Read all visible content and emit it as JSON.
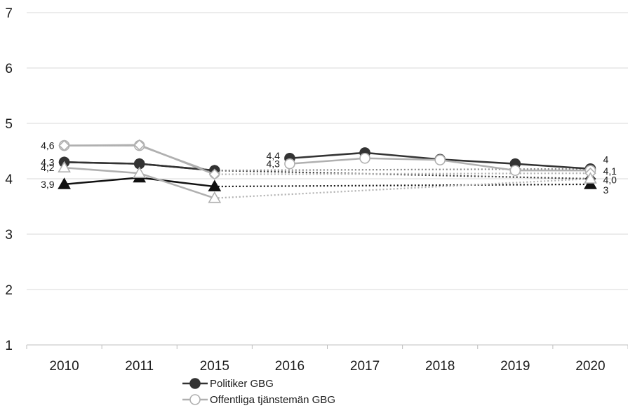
{
  "chart_data": {
    "type": "line",
    "categories": [
      "2010",
      "2011",
      "2015",
      "2016",
      "2017",
      "2018",
      "2019",
      "2020"
    ],
    "ylim": [
      1,
      7
    ],
    "yticks": [
      1,
      2,
      3,
      4,
      5,
      6,
      7
    ],
    "grid": true,
    "legend_position": "bottom",
    "series": [
      {
        "name": "Politiker GBG",
        "color": "#333333",
        "marker": "circle",
        "dash": false,
        "segments": [
          [
            0,
            2
          ],
          [
            3,
            7
          ]
        ],
        "values": [
          4.3,
          4.27,
          4.15,
          4.37,
          4.47,
          4.35,
          4.27,
          4.18
        ]
      },
      {
        "name": "Offentliga tjänstemän GBG",
        "color": "#b0b0b0",
        "marker": "circle-open",
        "dash": false,
        "segments": [
          [
            0,
            2
          ],
          [
            3,
            7
          ]
        ],
        "values": [
          4.6,
          4.6,
          4.1,
          4.27,
          4.37,
          4.34,
          4.15,
          4.15
        ]
      },
      {
        "color": "#333333",
        "marker": "diamond",
        "dash": false,
        "segments": [
          [
            0,
            2
          ]
        ],
        "values": [
          4.3,
          4.27,
          4.15,
          null,
          null,
          null,
          null,
          4.0
        ]
      },
      {
        "color": "#b0b0b0",
        "marker": "diamond-open",
        "dash": false,
        "segments": [
          [
            0,
            2
          ]
        ],
        "values": [
          4.6,
          4.61,
          4.08,
          null,
          null,
          null,
          null,
          4.1
        ]
      },
      {
        "color": "#111111",
        "marker": "triangle",
        "dash": false,
        "segments": [
          [
            0,
            2
          ]
        ],
        "values": [
          3.9,
          4.02,
          3.86,
          null,
          null,
          null,
          null,
          3.9
        ]
      },
      {
        "color": "#b0b0b0",
        "marker": "triangle-open",
        "dash": false,
        "segments": [
          [
            0,
            2
          ]
        ],
        "values": [
          4.2,
          4.1,
          3.65,
          null,
          null,
          null,
          null,
          4.0
        ]
      }
    ],
    "trendlines": [
      {
        "from": [
          2,
          4.15
        ],
        "to": [
          7,
          4.0
        ],
        "color": "#333333"
      },
      {
        "from": [
          2,
          4.08
        ],
        "to": [
          7,
          4.1
        ],
        "color": "#b0b0b0"
      },
      {
        "from": [
          2,
          3.86
        ],
        "to": [
          7,
          3.9
        ],
        "color": "#111111"
      },
      {
        "from": [
          2,
          3.65
        ],
        "to": [
          7,
          4.0
        ],
        "color": "#b0b0b0"
      },
      {
        "from": [
          2,
          4.15
        ],
        "to": [
          7,
          4.18
        ],
        "color": "#888888"
      }
    ],
    "data_labels": [
      {
        "text": "4,6",
        "category": 0,
        "value": 4.6,
        "side": "left"
      },
      {
        "text": "4,3",
        "category": 0,
        "value": 4.3,
        "side": "left"
      },
      {
        "text": "4,2",
        "category": 0,
        "value": 4.2,
        "side": "left"
      },
      {
        "text": "3,9",
        "category": 0,
        "value": 3.9,
        "side": "left"
      },
      {
        "text": "4,4",
        "category": 3,
        "value": 4.42,
        "side": "left"
      },
      {
        "text": "4,3",
        "category": 3,
        "value": 4.27,
        "side": "left"
      },
      {
        "text": "4",
        "category": 7,
        "value": 4.35,
        "side": "right"
      },
      {
        "text": "4,1",
        "category": 7,
        "value": 4.14,
        "side": "right"
      },
      {
        "text": "4,0",
        "category": 7,
        "value": 3.98,
        "side": "right"
      },
      {
        "text": "3",
        "category": 7,
        "value": 3.8,
        "side": "right"
      }
    ]
  }
}
